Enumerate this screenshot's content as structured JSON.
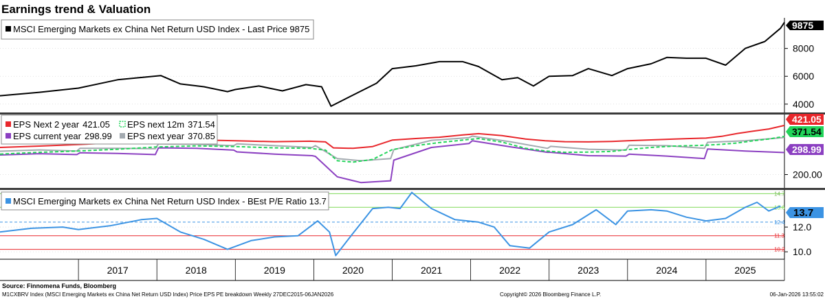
{
  "page_title": "Earnings trend & Valuation",
  "colors": {
    "index": "#000000",
    "eps_next2y": "#e8262b",
    "eps_next12m": "#22d45a",
    "eps_current": "#8b3fc1",
    "eps_nextyear": "#a3aab0",
    "pe": "#3b93e3",
    "pe_avg": "#3b93e3",
    "pe_plus1sd": "#7ed957",
    "pe_minus1sd": "#e8262b"
  },
  "chart_data": [
    {
      "id": "index_panel",
      "type": "line",
      "legend_label": "MSCI Emerging Markets ex China Net Return USD Index - Last Price 9875",
      "last_value_label": "9875",
      "ylim": [
        3400,
        10200
      ],
      "yticks": [
        "8000",
        "6000",
        "4000"
      ],
      "ytick_values": [
        8000,
        6000,
        4000
      ],
      "series": [
        {
          "name": "MSCI EM ex China NR USD Index",
          "x": [
            2016.0,
            2016.5,
            2017.0,
            2017.5,
            2018.05,
            2018.3,
            2018.6,
            2018.9,
            2019.0,
            2019.3,
            2019.6,
            2019.9,
            2020.1,
            2020.22,
            2020.5,
            2020.8,
            2021.0,
            2021.3,
            2021.6,
            2021.9,
            2022.1,
            2022.4,
            2022.6,
            2022.8,
            2023.0,
            2023.3,
            2023.5,
            2023.8,
            2024.0,
            2024.3,
            2024.5,
            2024.75,
            2025.0,
            2025.25,
            2025.5,
            2025.75,
            2025.95,
            2026.0
          ],
          "values": [
            4600,
            4850,
            5150,
            5750,
            6050,
            5450,
            5250,
            4900,
            5050,
            5300,
            4950,
            5400,
            5250,
            3850,
            4650,
            5500,
            6550,
            6750,
            7050,
            7050,
            6700,
            5750,
            5900,
            5300,
            6000,
            6050,
            6550,
            6050,
            6550,
            6900,
            7350,
            7300,
            7300,
            6800,
            8000,
            8500,
            9450,
            9875
          ]
        }
      ]
    },
    {
      "id": "eps_panel",
      "type": "line",
      "ylim": [
        140,
        470
      ],
      "yticks": [
        "200.00"
      ],
      "ytick_values": [
        200
      ],
      "series": [
        {
          "name": "EPS Next 2 year",
          "legend_label": "EPS Next 2 year",
          "legend_value": "421.05",
          "last_value_label": "421.05",
          "color_key": "eps_next2y",
          "dashed": false,
          "x": [
            2016.0,
            2016.5,
            2017.0,
            2017.5,
            2018.0,
            2018.5,
            2019.0,
            2019.5,
            2019.95,
            2020.15,
            2020.25,
            2020.5,
            2020.75,
            2021.0,
            2021.3,
            2021.6,
            2021.9,
            2022.1,
            2022.4,
            2022.7,
            2022.95,
            2023.2,
            2023.5,
            2023.8,
            2024.0,
            2024.3,
            2024.6,
            2024.8,
            2025.0,
            2025.2,
            2025.4,
            2025.6,
            2025.8,
            2026.0
          ],
          "values": [
            322,
            328,
            335,
            344,
            352,
            356,
            352,
            348,
            350,
            347,
            320,
            318,
            326,
            355,
            362,
            368,
            378,
            384,
            375,
            360,
            352,
            348,
            347,
            349,
            352,
            356,
            360,
            362,
            364,
            372,
            385,
            395,
            405,
            421.05
          ]
        },
        {
          "name": "EPS next 12m",
          "legend_label": "EPS next 12m",
          "legend_value": "371.54",
          "last_value_label": "371.54",
          "color_key": "eps_next12m",
          "dashed": true,
          "x": [
            2016.0,
            2016.5,
            2017.0,
            2017.5,
            2018.0,
            2018.5,
            2019.0,
            2019.5,
            2019.95,
            2020.15,
            2020.3,
            2020.5,
            2020.75,
            2021.0,
            2021.3,
            2021.6,
            2021.9,
            2022.1,
            2022.4,
            2022.7,
            2022.95,
            2023.2,
            2023.5,
            2023.8,
            2024.0,
            2024.3,
            2024.6,
            2024.8,
            2025.0,
            2025.2,
            2025.4,
            2025.6,
            2025.8,
            2026.0
          ],
          "values": [
            292,
            300,
            306,
            314,
            324,
            329,
            326,
            320,
            318,
            310,
            262,
            256,
            268,
            312,
            330,
            344,
            355,
            362,
            346,
            318,
            306,
            300,
            301,
            304,
            312,
            322,
            328,
            330,
            332,
            336,
            342,
            352,
            360,
            371.54
          ]
        },
        {
          "name": "EPS current year",
          "legend_label": "EPS current year",
          "legend_value": "298.99",
          "last_value_label": "298.99",
          "color_key": "eps_current",
          "dashed": false,
          "x": [
            2016.0,
            2016.5,
            2016.98,
            2017.02,
            2017.5,
            2017.98,
            2018.02,
            2018.5,
            2018.98,
            2019.02,
            2019.5,
            2019.98,
            2020.02,
            2020.3,
            2020.6,
            2020.98,
            2021.02,
            2021.5,
            2021.98,
            2022.02,
            2022.5,
            2022.98,
            2023.02,
            2023.5,
            2023.98,
            2024.02,
            2024.5,
            2024.98,
            2025.02,
            2025.5,
            2025.98,
            2026.0
          ],
          "values": [
            288,
            294,
            290,
            298,
            295,
            290,
            320,
            318,
            310,
            302,
            292,
            285,
            282,
            190,
            164,
            172,
            265,
            322,
            340,
            352,
            325,
            300,
            300,
            285,
            283,
            292,
            283,
            272,
            315,
            306,
            299,
            298.99
          ]
        },
        {
          "name": "EPS next year",
          "legend_label": "EPS next year",
          "legend_value": "370.85",
          "last_value_label": "",
          "color_key": "eps_nextyear",
          "dashed": false,
          "x": [
            2016.0,
            2016.5,
            2016.98,
            2017.02,
            2017.5,
            2017.98,
            2018.02,
            2018.5,
            2018.98,
            2019.02,
            2019.5,
            2019.98,
            2020.02,
            2020.3,
            2020.6,
            2020.98,
            2021.02,
            2021.5,
            2021.98,
            2022.02,
            2022.5,
            2022.98,
            2023.02,
            2023.5,
            2023.98,
            2024.02,
            2024.5,
            2024.98,
            2025.02,
            2025.5,
            2025.98,
            2026.0
          ],
          "values": [
            305,
            311,
            306,
            318,
            318,
            316,
            338,
            336,
            330,
            338,
            330,
            322,
            330,
            272,
            262,
            272,
            312,
            354,
            366,
            373,
            348,
            318,
            327,
            314,
            310,
            332,
            330,
            318,
            345,
            352,
            366,
            370.85
          ]
        }
      ]
    },
    {
      "id": "pe_panel",
      "type": "line",
      "legend_label": "MSCI Emerging Markets ex China Net Return USD Index - BEst P/E Ratio 13.7",
      "last_value_label": "13.7",
      "ylim": [
        9.4,
        15.0
      ],
      "yticks": [
        "12.0",
        "10.0"
      ],
      "ytick_values": [
        12.0,
        10.0
      ],
      "reference_lines": [
        {
          "name": "+1 std dev",
          "value": 13.6,
          "label": "13.6",
          "color_key": "pe_plus1sd",
          "dashed": false
        },
        {
          "name": "average",
          "value": 12.4,
          "label": "12.4",
          "color_key": "pe_avg",
          "dashed": true
        },
        {
          "name": "-1 std dev",
          "value": 11.3,
          "label": "11.3",
          "color_key": "pe_minus1sd",
          "dashed": false
        },
        {
          "name": "-2 std dev",
          "value": 10.2,
          "label": "10.2",
          "color_key": "pe_minus1sd",
          "dashed": false
        }
      ],
      "top_band_label": "14.7",
      "top_band_value": 14.7,
      "series": [
        {
          "name": "BEst P/E Ratio",
          "x": [
            2016.0,
            2016.4,
            2016.8,
            2017.0,
            2017.4,
            2017.8,
            2018.0,
            2018.3,
            2018.6,
            2018.9,
            2019.2,
            2019.5,
            2019.8,
            2020.05,
            2020.2,
            2020.28,
            2020.5,
            2020.75,
            2020.95,
            2021.1,
            2021.25,
            2021.5,
            2021.8,
            2022.1,
            2022.3,
            2022.5,
            2022.75,
            2023.0,
            2023.3,
            2023.6,
            2023.85,
            2024.0,
            2024.3,
            2024.5,
            2024.75,
            2025.0,
            2025.25,
            2025.5,
            2025.65,
            2025.8,
            2025.95
          ],
          "values": [
            11.6,
            11.9,
            12.0,
            11.8,
            12.1,
            12.6,
            12.7,
            11.6,
            11.0,
            10.2,
            10.9,
            11.2,
            11.3,
            12.5,
            11.6,
            9.7,
            11.5,
            13.5,
            13.6,
            13.5,
            14.8,
            13.5,
            12.6,
            12.4,
            12.0,
            10.5,
            10.3,
            11.6,
            12.2,
            13.4,
            12.2,
            13.3,
            13.4,
            13.3,
            12.8,
            12.5,
            12.7,
            13.6,
            14.0,
            13.3,
            13.7
          ]
        }
      ]
    }
  ],
  "x_axis": {
    "start": 2016.0,
    "end": 2026.0,
    "year_labels": [
      "2017",
      "2018",
      "2019",
      "2020",
      "2021",
      "2022",
      "2023",
      "2024",
      "2025"
    ]
  },
  "footer": {
    "source": "Source: Finnomena Funds, Bloomberg",
    "description": "M1CXBRV Index (MSCI Emerging Markets ex China Net Return USD Index) Price EPS PE breakdown Weekly 27DEC2015-06JAN2026",
    "copyright": "Copyright© 2026 Bloomberg Finance L.P.",
    "timestamp": "06-Jan-2026 13:55:02"
  }
}
